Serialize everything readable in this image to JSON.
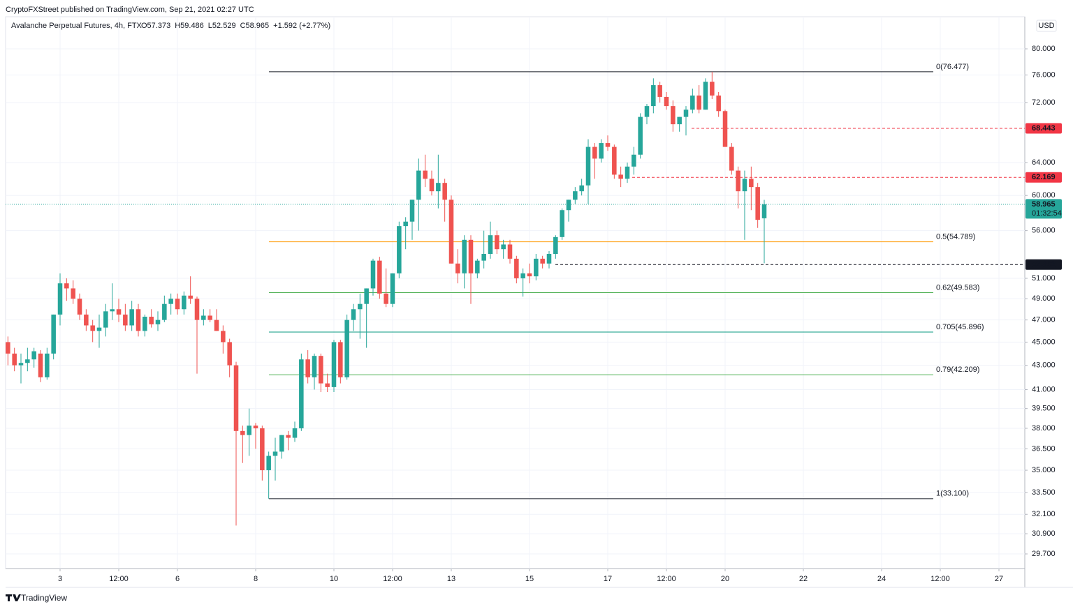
{
  "header": {
    "publisher": "CryptoFXStreet published on TradingView.com, Sep 21, 2021 02:27 UTC",
    "symbol": "Avalanche Perpetual Futures, 4h, FTX",
    "legend_items": [
      "O57.373",
      "H59.486",
      "L52.529",
      "C58.965",
      "+1.592 (+2.77%)"
    ],
    "currency": "USD",
    "footer": "TradingView"
  },
  "chart_data": {
    "type": "candlestick",
    "up_color": "#26a69a",
    "down_color": "#ef5350",
    "log_scale": true,
    "ylim": [
      28.86,
      85.2
    ],
    "yticks": [
      {
        "value": 80,
        "label": "80.000"
      },
      {
        "value": 76,
        "label": "76.000"
      },
      {
        "value": 72,
        "label": "72.000"
      },
      {
        "value": 64,
        "label": "64.000"
      },
      {
        "value": 60,
        "label": "60.000"
      },
      {
        "value": 56,
        "label": "56.000"
      },
      {
        "value": 51,
        "label": "51.000"
      },
      {
        "value": 49,
        "label": "49.000"
      },
      {
        "value": 47,
        "label": "47.000"
      },
      {
        "value": 45,
        "label": "45.000"
      },
      {
        "value": 43,
        "label": "43.000"
      },
      {
        "value": 41,
        "label": "41.000"
      },
      {
        "value": 39.5,
        "label": "39.500"
      },
      {
        "value": 38,
        "label": "38.000"
      },
      {
        "value": 36.5,
        "label": "36.500"
      },
      {
        "value": 35,
        "label": "35.000"
      },
      {
        "value": 33.5,
        "label": "33.500"
      },
      {
        "value": 32.1,
        "label": "32.100"
      },
      {
        "value": 30.9,
        "label": "30.900"
      },
      {
        "value": 29.7,
        "label": "29.700"
      }
    ],
    "xlim": [
      14.57,
      639.86
    ],
    "xticks": [
      {
        "value": 48,
        "label": "3"
      },
      {
        "value": 84,
        "label": "12:00"
      },
      {
        "value": 120,
        "label": "6"
      },
      {
        "value": 168,
        "label": "8"
      },
      {
        "value": 216,
        "label": "10"
      },
      {
        "value": 252,
        "label": "12:00"
      },
      {
        "value": 288,
        "label": "13"
      },
      {
        "value": 336,
        "label": "15"
      },
      {
        "value": 384,
        "label": "17"
      },
      {
        "value": 420,
        "label": "12:00"
      },
      {
        "value": 456,
        "label": "20"
      },
      {
        "value": 504,
        "label": "22"
      },
      {
        "value": 552,
        "label": "24"
      },
      {
        "value": 588,
        "label": "12:00"
      },
      {
        "value": 624,
        "label": "27"
      }
    ],
    "grid": true,
    "x": [
      16,
      20,
      24,
      28,
      32,
      36,
      40,
      44,
      48,
      52,
      56,
      60,
      64,
      68,
      72,
      76,
      80,
      84,
      88,
      92,
      96,
      100,
      104,
      108,
      112,
      116,
      120,
      124,
      128,
      132,
      136,
      140,
      144,
      148,
      152,
      156,
      160,
      164,
      168,
      172,
      176,
      180,
      184,
      188,
      192,
      196,
      200,
      204,
      208,
      212,
      216,
      220,
      224,
      228,
      232,
      236,
      240,
      244,
      248,
      252,
      256,
      260,
      264,
      268,
      272,
      276,
      280,
      284,
      288,
      292,
      296,
      300,
      304,
      308,
      312,
      316,
      320,
      324,
      328,
      332,
      336,
      340,
      344,
      348,
      352,
      356,
      360,
      364,
      368,
      372,
      376,
      380,
      384,
      388,
      392,
      396,
      400,
      404,
      408,
      412,
      416,
      420,
      424,
      428,
      432,
      436,
      440,
      444,
      448,
      452,
      456,
      460,
      464,
      468,
      472,
      476,
      480
    ],
    "candles": [
      [
        45,
        45.5,
        43,
        44
      ],
      [
        44,
        44.5,
        42.5,
        43
      ],
      [
        43,
        44,
        41.5,
        43.2
      ],
      [
        43.2,
        44.5,
        42.5,
        43.5
      ],
      [
        43.5,
        44.5,
        42.8,
        44.2
      ],
      [
        44,
        44.3,
        41.6,
        42
      ],
      [
        42,
        44.5,
        41.8,
        44
      ],
      [
        44,
        47.5,
        43.5,
        47.5
      ],
      [
        47.5,
        51.5,
        46.5,
        50.5
      ],
      [
        50.5,
        51,
        48.8,
        50
      ],
      [
        50,
        50.8,
        48.5,
        49
      ],
      [
        49,
        49.5,
        47,
        47.5
      ],
      [
        47.5,
        48,
        46,
        46.5
      ],
      [
        46.5,
        47,
        45,
        46
      ],
      [
        46,
        47.5,
        44.5,
        46.3
      ],
      [
        46.3,
        48.5,
        45.5,
        47.8
      ],
      [
        47.8,
        50.5,
        47,
        48
      ],
      [
        48,
        49,
        46.8,
        47.5
      ],
      [
        47.5,
        48.5,
        46,
        46.5
      ],
      [
        46.5,
        48.8,
        46,
        48
      ],
      [
        48,
        48.5,
        45.5,
        46
      ],
      [
        46,
        47.5,
        45.5,
        47.3
      ],
      [
        47.3,
        48,
        46.3,
        46.6
      ],
      [
        46.6,
        47.8,
        46,
        47
      ],
      [
        47,
        49.3,
        46.8,
        48.5
      ],
      [
        48.5,
        49.5,
        47.5,
        49
      ],
      [
        49,
        49.5,
        47.5,
        48
      ],
      [
        48,
        49.7,
        47.5,
        49.3
      ],
      [
        49.3,
        51.2,
        48.5,
        49
      ],
      [
        49,
        49.2,
        42.3,
        47
      ],
      [
        47,
        48,
        46.5,
        47.4
      ],
      [
        47.4,
        48,
        46.8,
        47
      ],
      [
        47,
        48,
        46,
        46
      ],
      [
        46,
        46.5,
        44,
        45
      ],
      [
        45,
        45.3,
        42,
        43
      ],
      [
        43,
        43.3,
        31.4,
        37.8
      ],
      [
        37.8,
        38.2,
        35.5,
        37.5
      ],
      [
        37.5,
        39.5,
        36,
        38.2
      ],
      [
        38.2,
        38.4,
        36.5,
        38
      ],
      [
        38,
        38.2,
        34.3,
        35
      ],
      [
        35,
        36.3,
        33.1,
        36
      ],
      [
        36,
        37.3,
        34.3,
        36.3
      ],
      [
        36.3,
        37.5,
        35.8,
        37.5
      ],
      [
        37.5,
        37.8,
        36.4,
        37.3
      ],
      [
        37.3,
        38.5,
        37,
        38
      ],
      [
        38,
        44,
        37.8,
        43.5
      ],
      [
        43.5,
        44.3,
        41.5,
        42
      ],
      [
        42,
        44,
        41,
        43.8
      ],
      [
        43.8,
        44,
        40.8,
        41.5
      ],
      [
        41.5,
        42.3,
        40.8,
        41.2
      ],
      [
        41.2,
        45.2,
        40.8,
        45
      ],
      [
        45,
        45.2,
        41.5,
        42
      ],
      [
        42,
        47.5,
        41.8,
        47
      ],
      [
        47,
        48.5,
        46,
        48
      ],
      [
        48,
        49.5,
        45.3,
        48.5
      ],
      [
        48.5,
        50,
        44.5,
        50
      ],
      [
        50,
        53,
        49.3,
        52.8
      ],
      [
        52.8,
        53.2,
        49,
        49.5
      ],
      [
        49.5,
        52,
        48.2,
        48.5
      ],
      [
        48.5,
        51.5,
        48.2,
        51.5
      ],
      [
        51.5,
        57,
        51,
        56.5
      ],
      [
        56.5,
        57.5,
        54,
        57
      ],
      [
        57,
        59.5,
        55,
        59.5
      ],
      [
        59.5,
        64.5,
        56,
        63
      ],
      [
        63,
        65,
        61,
        62
      ],
      [
        62,
        63,
        60,
        60.5
      ],
      [
        60.5,
        65,
        58.5,
        61.5
      ],
      [
        61.5,
        62,
        57,
        59.5
      ],
      [
        59.5,
        60,
        52.5,
        52.5
      ],
      [
        52.5,
        54,
        50.5,
        51.5
      ],
      [
        51.5,
        55.5,
        50,
        55
      ],
      [
        55,
        55.5,
        48.5,
        51.5
      ],
      [
        51.5,
        53,
        51,
        52.8
      ],
      [
        52.8,
        56,
        52,
        53.5
      ],
      [
        53.5,
        57,
        53,
        55.5
      ],
      [
        55.5,
        56,
        53.5,
        54
      ],
      [
        54,
        55,
        53,
        54.5
      ],
      [
        54.5,
        55,
        52.5,
        53
      ],
      [
        53,
        53.3,
        50.5,
        51
      ],
      [
        51,
        52,
        49.2,
        51.5
      ],
      [
        51.5,
        52.5,
        50.5,
        51.2
      ],
      [
        51.2,
        53.5,
        50.8,
        53
      ],
      [
        53,
        53.3,
        52,
        52.5
      ],
      [
        52.5,
        53.8,
        52,
        53.5
      ],
      [
        53.5,
        55.5,
        53,
        55.3
      ],
      [
        55.3,
        58.5,
        55,
        58.3
      ],
      [
        58.3,
        59.5,
        57,
        59.5
      ],
      [
        59.5,
        61,
        59,
        60.5
      ],
      [
        60.5,
        62,
        60,
        61.2
      ],
      [
        61.2,
        67,
        59,
        66
      ],
      [
        66,
        66.5,
        62,
        64.5
      ],
      [
        64.5,
        67,
        64,
        66.5
      ],
      [
        66.5,
        67.5,
        65.5,
        66
      ],
      [
        66,
        66.3,
        62,
        62.5
      ],
      [
        62.5,
        63.5,
        61,
        62
      ],
      [
        62,
        64,
        61.5,
        63.5
      ],
      [
        63.5,
        66,
        62.5,
        65
      ],
      [
        65,
        70.5,
        64.5,
        70
      ],
      [
        70,
        71.8,
        69,
        71.5
      ],
      [
        71.5,
        75.5,
        70.5,
        74.5
      ],
      [
        74.5,
        75,
        72,
        72.8
      ],
      [
        72.8,
        73.5,
        71,
        71.5
      ],
      [
        71.5,
        72.3,
        68,
        69
      ],
      [
        69,
        70,
        68,
        70
      ],
      [
        70,
        71.5,
        67.5,
        71
      ],
      [
        71,
        74,
        70.5,
        73
      ],
      [
        73,
        74.5,
        70.5,
        71
      ],
      [
        71,
        75.5,
        71,
        75
      ],
      [
        75,
        76.477,
        72.5,
        73
      ],
      [
        73,
        73.5,
        70,
        70.8
      ],
      [
        70.8,
        71,
        66,
        66
      ],
      [
        66,
        66.5,
        62.5,
        63
      ],
      [
        63,
        63.5,
        58.5,
        60.5
      ],
      [
        60.5,
        63,
        55,
        62
      ],
      [
        62,
        63.5,
        58.3,
        61
      ],
      [
        61,
        61.5,
        56.3,
        57.2
      ],
      [
        57.373,
        59.486,
        52.529,
        58.965
      ]
    ],
    "fib_levels": [
      {
        "label": "0(76.477)",
        "value": 76.477,
        "color": "#131722"
      },
      {
        "label": "0.5(54.789)",
        "value": 54.789,
        "color": "#ff9800"
      },
      {
        "label": "0.62(49.583)",
        "value": 49.583,
        "color": "#4caf50"
      },
      {
        "label": "0.705(45.896)",
        "value": 45.896,
        "color": "#089981"
      },
      {
        "label": "0.79(42.209)",
        "value": 42.209,
        "color": "#4caf50"
      },
      {
        "label": "1(33.100)",
        "value": 33.1,
        "color": "#131722"
      }
    ],
    "price_lines": [
      {
        "value": 68.443,
        "color": "#f23645"
      },
      {
        "value": 62.169,
        "color": "#f23645"
      },
      {
        "value": 52.392,
        "color": "#131722"
      }
    ],
    "last_price": {
      "value": 58.965,
      "countdown": "01:32:54",
      "color": "#26a69a"
    }
  }
}
